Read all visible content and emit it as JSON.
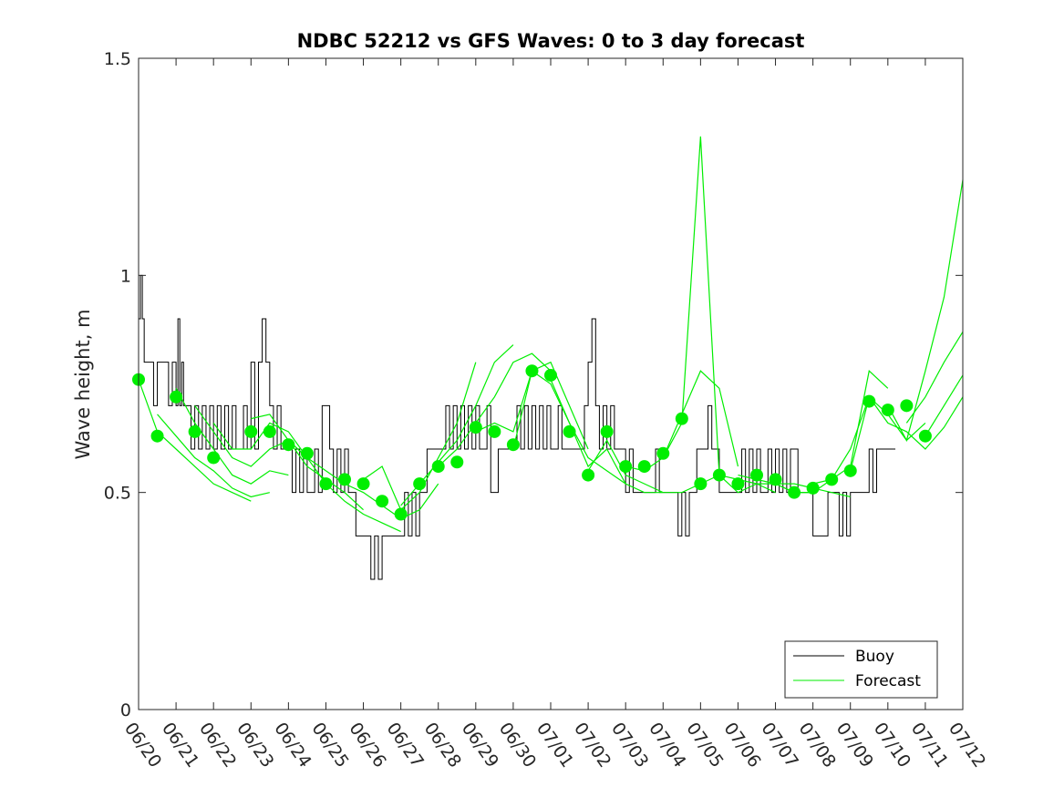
{
  "chart_data": {
    "type": "line",
    "title": "NDBC 52212 vs GFS Waves: 0 to 3 day forecast",
    "xlabel": "",
    "ylabel": "Wave height, m",
    "ylim": [
      0,
      1.5
    ],
    "yticks": [
      0,
      0.5,
      1,
      1.5
    ],
    "ytick_labels": [
      "0",
      "0.5",
      "1",
      "1.5"
    ],
    "xlim": [
      "06/20",
      "07/12"
    ],
    "xtick_labels": [
      "06/20",
      "06/21",
      "06/22",
      "06/23",
      "06/24",
      "06/25",
      "06/26",
      "06/27",
      "06/28",
      "06/29",
      "06/30",
      "07/01",
      "07/02",
      "07/03",
      "07/04",
      "07/05",
      "07/06",
      "07/07",
      "07/08",
      "07/09",
      "07/10",
      "07/11",
      "07/12"
    ],
    "grid": false,
    "legend_position": "bottom-right",
    "colors": {
      "buoy": "#000000",
      "forecast": "#00ee00"
    },
    "series": [
      {
        "name": "Buoy",
        "kind": "line",
        "color": "#000000",
        "x": [
          0,
          0.05,
          0.1,
          0.15,
          0.2,
          0.3,
          0.4,
          0.5,
          0.6,
          0.7,
          0.8,
          0.9,
          1.0,
          1.05,
          1.1,
          1.15,
          1.2,
          1.3,
          1.4,
          1.5,
          1.6,
          1.7,
          1.8,
          1.9,
          2.0,
          2.1,
          2.2,
          2.3,
          2.4,
          2.5,
          2.6,
          2.7,
          2.8,
          2.9,
          3.0,
          3.1,
          3.2,
          3.3,
          3.4,
          3.5,
          3.6,
          3.7,
          3.8,
          3.9,
          4.0,
          4.1,
          4.2,
          4.3,
          4.4,
          4.5,
          4.6,
          4.7,
          4.8,
          4.9,
          5.0,
          5.1,
          5.2,
          5.3,
          5.4,
          5.5,
          5.6,
          5.7,
          5.8,
          5.9,
          6.0,
          6.1,
          6.2,
          6.3,
          6.4,
          6.5,
          6.6,
          6.7,
          6.8,
          6.9,
          7.0,
          7.1,
          7.2,
          7.3,
          7.4,
          7.5,
          7.6,
          7.7,
          7.8,
          7.9,
          8.0,
          8.1,
          8.2,
          8.3,
          8.4,
          8.5,
          8.6,
          8.7,
          8.8,
          8.9,
          9.0,
          9.1,
          9.2,
          9.3,
          9.4,
          9.5,
          9.6,
          9.7,
          9.8,
          9.9,
          10.0,
          10.1,
          10.2,
          10.3,
          10.4,
          10.5,
          10.6,
          10.7,
          10.8,
          10.9,
          11.0,
          11.1,
          11.2,
          11.3,
          11.4,
          11.5,
          11.6,
          11.7,
          11.8,
          11.9,
          12.0,
          12.1,
          12.2,
          12.3,
          12.4,
          12.5,
          12.6,
          12.7,
          12.8,
          12.9,
          13.0,
          13.1,
          13.2,
          13.3,
          13.4,
          13.5,
          13.6,
          13.7,
          13.8,
          13.9,
          14.0,
          14.1,
          14.2,
          14.3,
          14.4,
          14.5,
          14.6,
          14.7,
          14.8,
          14.9,
          15.0,
          15.1,
          15.2,
          15.3,
          15.4,
          15.5,
          15.6,
          15.7,
          15.8,
          15.9,
          16.0,
          16.1,
          16.2,
          16.3,
          16.4,
          16.5,
          16.6,
          16.7,
          16.8,
          16.9,
          17.0,
          17.1,
          17.2,
          17.3,
          17.4,
          17.5,
          17.6,
          17.7,
          17.8,
          17.9,
          18.0,
          18.1,
          18.2,
          18.3,
          18.4,
          18.5,
          18.6,
          18.7,
          18.8,
          18.9,
          19.0,
          19.1,
          19.2,
          19.3,
          19.4,
          19.5,
          19.6,
          19.7,
          19.8,
          19.9,
          20.0,
          20.1,
          20.2
        ],
        "y": [
          0.9,
          1.0,
          0.9,
          0.8,
          0.8,
          0.8,
          0.7,
          0.8,
          0.8,
          0.8,
          0.7,
          0.8,
          0.7,
          0.9,
          0.7,
          0.8,
          0.7,
          0.7,
          0.6,
          0.7,
          0.6,
          0.7,
          0.6,
          0.7,
          0.6,
          0.7,
          0.6,
          0.7,
          0.6,
          0.7,
          0.6,
          0.6,
          0.7,
          0.6,
          0.8,
          0.6,
          0.8,
          0.9,
          0.8,
          0.7,
          0.6,
          0.7,
          0.6,
          0.6,
          0.6,
          0.5,
          0.6,
          0.5,
          0.6,
          0.5,
          0.5,
          0.6,
          0.5,
          0.7,
          0.7,
          0.6,
          0.5,
          0.6,
          0.5,
          0.6,
          0.5,
          0.5,
          0.4,
          0.4,
          0.4,
          0.4,
          0.3,
          0.4,
          0.3,
          0.4,
          0.4,
          0.4,
          0.4,
          0.4,
          0.4,
          0.5,
          0.4,
          0.5,
          0.4,
          0.5,
          0.5,
          0.6,
          0.6,
          0.6,
          0.6,
          0.6,
          0.7,
          0.6,
          0.7,
          0.6,
          0.7,
          0.6,
          0.7,
          0.6,
          0.7,
          0.6,
          0.6,
          0.7,
          0.5,
          0.5,
          0.6,
          0.6,
          0.6,
          0.6,
          0.6,
          0.7,
          0.6,
          0.7,
          0.6,
          0.7,
          0.6,
          0.7,
          0.6,
          0.7,
          0.6,
          0.6,
          0.7,
          0.6,
          0.6,
          0.6,
          0.6,
          0.6,
          0.6,
          0.7,
          0.8,
          0.9,
          0.7,
          0.6,
          0.7,
          0.6,
          0.7,
          0.6,
          0.6,
          0.6,
          0.5,
          0.6,
          0.5,
          0.5,
          0.5,
          0.5,
          0.5,
          0.5,
          0.6,
          0.5,
          0.5,
          0.5,
          0.5,
          0.5,
          0.4,
          0.5,
          0.4,
          0.5,
          0.5,
          0.6,
          0.6,
          0.6,
          0.7,
          0.6,
          0.6,
          0.5,
          0.5,
          0.5,
          0.5,
          0.5,
          0.5,
          0.6,
          0.5,
          0.6,
          0.5,
          0.6,
          0.5,
          0.5,
          0.6,
          0.5,
          0.6,
          0.5,
          0.6,
          0.5,
          0.6,
          0.6,
          0.5,
          0.5,
          0.5,
          0.5,
          0.4,
          0.4,
          0.4,
          0.4,
          0.5,
          0.5,
          0.5,
          0.4,
          0.5,
          0.4,
          0.5,
          0.5,
          0.5,
          0.5,
          0.5,
          0.6,
          0.5,
          0.6,
          0.6,
          0.6,
          0.6,
          0.6,
          0.6
        ]
      },
      {
        "name": "Forecast",
        "kind": "lines",
        "color": "#00ee00",
        "lines": [
          {
            "x": [
              0,
              0.5,
              1,
              1.5,
              2,
              2.5,
              3
            ],
            "y": [
              0.76,
              0.64,
              0.6,
              0.56,
              0.52,
              0.5,
              0.48
            ]
          },
          {
            "x": [
              0.5,
              1,
              1.5,
              2,
              2.5,
              3,
              3.5
            ],
            "y": [
              0.68,
              0.63,
              0.58,
              0.55,
              0.51,
              0.49,
              0.5
            ]
          },
          {
            "x": [
              1,
              1.5,
              2,
              2.5,
              3,
              3.5,
              4
            ],
            "y": [
              0.74,
              0.66,
              0.6,
              0.54,
              0.52,
              0.55,
              0.54
            ]
          },
          {
            "x": [
              1.5,
              2,
              2.5,
              3,
              3.5,
              4,
              4.5
            ],
            "y": [
              0.7,
              0.64,
              0.58,
              0.56,
              0.6,
              0.62,
              0.58
            ]
          },
          {
            "x": [
              2,
              2.5,
              3,
              3.5,
              4,
              4.5,
              5
            ],
            "y": [
              0.66,
              0.6,
              0.6,
              0.66,
              0.64,
              0.58,
              0.55
            ]
          },
          {
            "x": [
              3,
              3.5,
              4,
              4.5,
              5,
              5.5,
              6
            ],
            "y": [
              0.67,
              0.68,
              0.62,
              0.56,
              0.53,
              0.5,
              0.46
            ]
          },
          {
            "x": [
              4,
              4.5,
              5,
              5.5,
              6,
              6.5,
              7
            ],
            "y": [
              0.62,
              0.58,
              0.52,
              0.48,
              0.45,
              0.43,
              0.41
            ]
          },
          {
            "x": [
              5,
              5.5,
              6,
              6.5,
              7,
              7.5,
              8
            ],
            "y": [
              0.55,
              0.52,
              0.5,
              0.47,
              0.44,
              0.46,
              0.52
            ]
          },
          {
            "x": [
              6,
              6.5,
              7,
              7.5,
              8,
              8.5,
              9
            ],
            "y": [
              0.53,
              0.56,
              0.46,
              0.5,
              0.58,
              0.66,
              0.8
            ]
          },
          {
            "x": [
              7,
              7.5,
              8,
              8.5,
              9,
              9.5,
              10
            ],
            "y": [
              0.47,
              0.52,
              0.57,
              0.62,
              0.7,
              0.8,
              0.84
            ]
          },
          {
            "x": [
              8,
              8.5,
              9,
              9.5,
              10,
              10.5,
              11
            ],
            "y": [
              0.56,
              0.6,
              0.66,
              0.72,
              0.8,
              0.82,
              0.78
            ]
          },
          {
            "x": [
              9,
              9.5,
              10,
              10.5,
              11,
              11.5,
              12
            ],
            "y": [
              0.64,
              0.66,
              0.64,
              0.78,
              0.8,
              0.7,
              0.6
            ]
          },
          {
            "x": [
              10,
              10.5,
              11,
              11.5,
              12,
              12.5,
              13
            ],
            "y": [
              0.6,
              0.78,
              0.75,
              0.66,
              0.58,
              0.55,
              0.52
            ]
          },
          {
            "x": [
              11,
              11.5,
              12,
              12.5,
              13,
              13.5,
              14
            ],
            "y": [
              0.76,
              0.66,
              0.56,
              0.6,
              0.52,
              0.5,
              0.5
            ]
          },
          {
            "x": [
              12,
              12.5,
              13,
              13.5,
              14,
              14.5,
              15
            ],
            "y": [
              0.55,
              0.62,
              0.54,
              0.52,
              0.5,
              0.5,
              0.52
            ]
          },
          {
            "x": [
              13,
              13.5,
              14,
              14.5,
              15,
              15.5,
              16
            ],
            "y": [
              0.56,
              0.55,
              0.58,
              0.68,
              0.78,
              0.74,
              0.56
            ]
          },
          {
            "x": [
              14,
              14.5,
              15,
              15.5,
              16,
              16.5,
              17
            ],
            "y": [
              0.58,
              0.66,
              1.32,
              0.54,
              0.5,
              0.52,
              0.5
            ]
          },
          {
            "x": [
              15,
              15.5,
              16,
              16.5,
              17,
              17.5,
              18
            ],
            "y": [
              0.52,
              0.54,
              0.53,
              0.52,
              0.52,
              0.5,
              0.5
            ]
          },
          {
            "x": [
              16,
              16.5,
              17,
              17.5,
              18,
              18.5,
              19
            ],
            "y": [
              0.54,
              0.53,
              0.52,
              0.52,
              0.51,
              0.5,
              0.49
            ]
          },
          {
            "x": [
              17,
              17.5,
              18,
              18.5,
              19,
              19.5,
              20
            ],
            "y": [
              0.52,
              0.5,
              0.5,
              0.53,
              0.56,
              0.78,
              0.74
            ]
          },
          {
            "x": [
              18,
              18.5,
              19,
              19.5,
              20,
              20.5,
              21
            ],
            "y": [
              0.52,
              0.53,
              0.6,
              0.72,
              0.68,
              0.62,
              0.66
            ]
          },
          {
            "x": [
              19,
              19.5,
              20,
              20.5,
              21,
              21.5,
              22
            ],
            "y": [
              0.55,
              0.72,
              0.66,
              0.64,
              0.6,
              0.65,
              0.72
            ]
          },
          {
            "x": [
              20,
              20.5,
              21,
              21.5,
              22
            ],
            "y": [
              0.7,
              0.62,
              0.78,
              0.95,
              1.22
            ]
          },
          {
            "x": [
              20.5,
              21,
              21.5,
              22
            ],
            "y": [
              0.66,
              0.72,
              0.8,
              0.87
            ]
          },
          {
            "x": [
              21,
              21.5,
              22
            ],
            "y": [
              0.63,
              0.7,
              0.77
            ]
          }
        ],
        "markers_x": [
          0,
          0.5,
          1,
          1.5,
          2,
          3,
          3.5,
          4,
          4.5,
          5,
          5.5,
          6,
          6.5,
          7,
          7.5,
          8,
          8.5,
          9,
          9.5,
          10,
          10.5,
          11,
          11.5,
          12,
          12.5,
          13,
          13.5,
          14,
          14.5,
          15,
          15.5,
          16,
          16.5,
          17,
          17.5,
          18,
          18.5,
          19,
          19.5,
          20,
          20.5,
          21
        ],
        "markers_y": [
          0.76,
          0.63,
          0.72,
          0.64,
          0.58,
          0.64,
          0.64,
          0.61,
          0.59,
          0.52,
          0.53,
          0.52,
          0.48,
          0.45,
          0.52,
          0.56,
          0.57,
          0.65,
          0.64,
          0.61,
          0.78,
          0.77,
          0.64,
          0.54,
          0.64,
          0.56,
          0.56,
          0.59,
          0.67,
          0.52,
          0.54,
          0.52,
          0.54,
          0.53,
          0.5,
          0.51,
          0.53,
          0.55,
          0.71,
          0.69,
          0.7,
          0.63
        ]
      }
    ]
  }
}
